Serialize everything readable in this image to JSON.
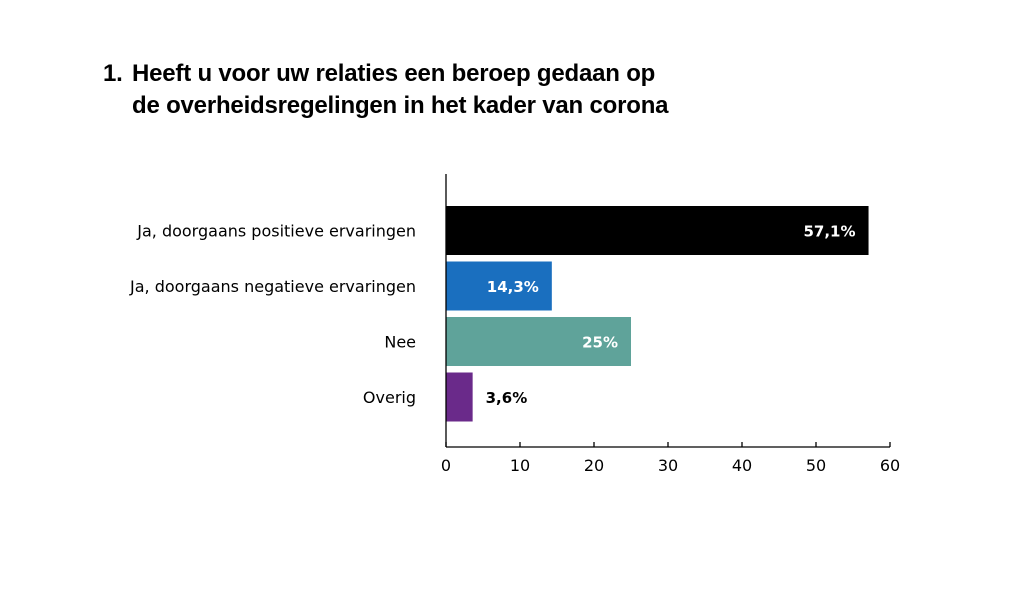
{
  "title": {
    "number": "1.",
    "line1": "Heeft u voor uw relaties een beroep gedaan op",
    "line2": "de overheidsregelingen in het kader van corona"
  },
  "chart_data": {
    "type": "bar",
    "orientation": "horizontal",
    "categories": [
      "Ja, doorgaans positieve ervaringen",
      "Ja, doorgaans negatieve ervaringen",
      "Nee",
      "Overig"
    ],
    "values": [
      57.1,
      14.3,
      25,
      3.6
    ],
    "value_labels": [
      "57,1%",
      "14,3%",
      "25%",
      "3,6%"
    ],
    "colors": [
      "#000000",
      "#1a6fbf",
      "#5fa39a",
      "#6a2a8a"
    ],
    "label_colors": [
      "#ffffff",
      "#ffffff",
      "#ffffff",
      "#000000"
    ],
    "xlim": [
      0,
      60
    ],
    "xticks": [
      0,
      10,
      20,
      30,
      40,
      50,
      60
    ],
    "xtick_labels": [
      "0",
      "10",
      "20",
      "30",
      "40",
      "50",
      "60"
    ],
    "grid": false,
    "legend": "none"
  }
}
